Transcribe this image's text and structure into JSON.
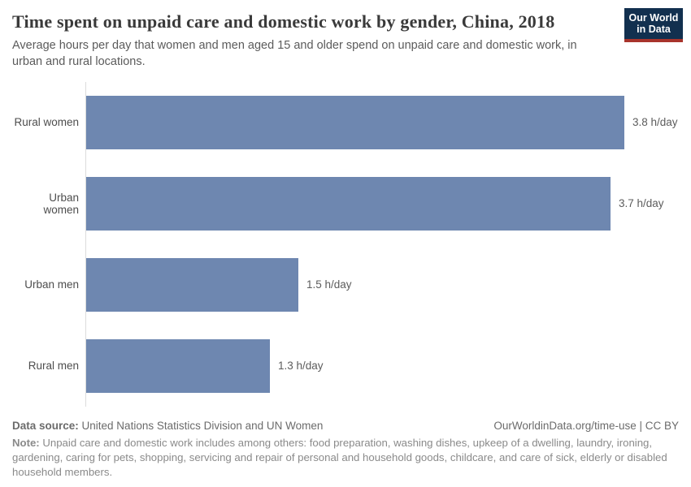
{
  "header": {
    "title": "Time spent on unpaid care and domestic work by gender, China, 2018",
    "subtitle": "Average hours per day that women and men aged 15 and older spend on unpaid care and domestic work, in urban and rural locations.",
    "logo": {
      "line1": "Our World",
      "line2": "in Data",
      "bg_color": "#12304f",
      "stripe_color": "#a8342c"
    }
  },
  "chart_data": {
    "type": "bar",
    "orientation": "horizontal",
    "title": "Time spent on unpaid care and domestic work by gender, China, 2018",
    "categories": [
      "Rural women",
      "Urban women",
      "Urban men",
      "Rural men"
    ],
    "values": [
      3.8,
      3.7,
      1.5,
      1.3
    ],
    "value_labels": [
      "3.8 h/day",
      "3.7 h/day",
      "1.5 h/day",
      "1.3 h/day"
    ],
    "unit": "h/day",
    "xlim": [
      0,
      3.8
    ],
    "bar_color": "#6e87b0",
    "axis_color": "#dcdcdc",
    "grid": false,
    "legend": false
  },
  "footer": {
    "data_source_label": "Data source:",
    "data_source_text": " United Nations Statistics Division and UN Women",
    "attribution": "OurWorldinData.org/time-use | CC BY",
    "note_label": "Note:",
    "note_text": " Unpaid care and domestic work includes among others: food preparation, washing dishes, upkeep of a dwelling, laundry, ironing, gardening, caring for pets, shopping, servicing and repair of personal and household goods, childcare, and care of sick, elderly or disabled household members."
  }
}
